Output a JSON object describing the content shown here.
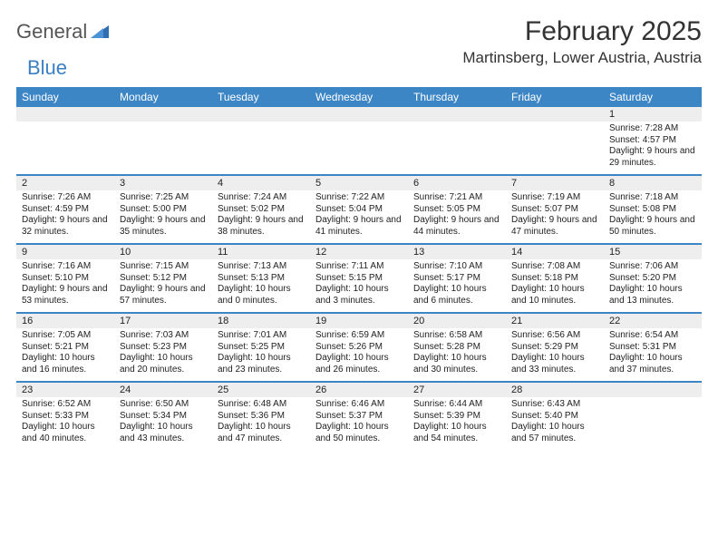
{
  "logo": {
    "word1": "General",
    "word2": "Blue"
  },
  "title": "February 2025",
  "location": "Martinsberg, Lower Austria, Austria",
  "colors": {
    "header_bar": "#3d86c6",
    "week_rule": "#3d86c6",
    "band_bg": "#eeeeee",
    "text": "#222222",
    "logo_gray": "#555555",
    "logo_blue": "#3b7fc4",
    "page_bg": "#ffffff"
  },
  "typography": {
    "title_fontsize": 30,
    "location_fontsize": 17,
    "dayhead_fontsize": 12,
    "cell_fontsize": 10,
    "daynum_fontsize": 11,
    "logo_fontsize": 22,
    "font_family": "Arial"
  },
  "day_headers": [
    "Sunday",
    "Monday",
    "Tuesday",
    "Wednesday",
    "Thursday",
    "Friday",
    "Saturday"
  ],
  "weeks": [
    [
      null,
      null,
      null,
      null,
      null,
      null,
      {
        "n": "1",
        "sr": "7:28 AM",
        "ss": "4:57 PM",
        "dl": "9 hours and 29 minutes."
      }
    ],
    [
      {
        "n": "2",
        "sr": "7:26 AM",
        "ss": "4:59 PM",
        "dl": "9 hours and 32 minutes."
      },
      {
        "n": "3",
        "sr": "7:25 AM",
        "ss": "5:00 PM",
        "dl": "9 hours and 35 minutes."
      },
      {
        "n": "4",
        "sr": "7:24 AM",
        "ss": "5:02 PM",
        "dl": "9 hours and 38 minutes."
      },
      {
        "n": "5",
        "sr": "7:22 AM",
        "ss": "5:04 PM",
        "dl": "9 hours and 41 minutes."
      },
      {
        "n": "6",
        "sr": "7:21 AM",
        "ss": "5:05 PM",
        "dl": "9 hours and 44 minutes."
      },
      {
        "n": "7",
        "sr": "7:19 AM",
        "ss": "5:07 PM",
        "dl": "9 hours and 47 minutes."
      },
      {
        "n": "8",
        "sr": "7:18 AM",
        "ss": "5:08 PM",
        "dl": "9 hours and 50 minutes."
      }
    ],
    [
      {
        "n": "9",
        "sr": "7:16 AM",
        "ss": "5:10 PM",
        "dl": "9 hours and 53 minutes."
      },
      {
        "n": "10",
        "sr": "7:15 AM",
        "ss": "5:12 PM",
        "dl": "9 hours and 57 minutes."
      },
      {
        "n": "11",
        "sr": "7:13 AM",
        "ss": "5:13 PM",
        "dl": "10 hours and 0 minutes."
      },
      {
        "n": "12",
        "sr": "7:11 AM",
        "ss": "5:15 PM",
        "dl": "10 hours and 3 minutes."
      },
      {
        "n": "13",
        "sr": "7:10 AM",
        "ss": "5:17 PM",
        "dl": "10 hours and 6 minutes."
      },
      {
        "n": "14",
        "sr": "7:08 AM",
        "ss": "5:18 PM",
        "dl": "10 hours and 10 minutes."
      },
      {
        "n": "15",
        "sr": "7:06 AM",
        "ss": "5:20 PM",
        "dl": "10 hours and 13 minutes."
      }
    ],
    [
      {
        "n": "16",
        "sr": "7:05 AM",
        "ss": "5:21 PM",
        "dl": "10 hours and 16 minutes."
      },
      {
        "n": "17",
        "sr": "7:03 AM",
        "ss": "5:23 PM",
        "dl": "10 hours and 20 minutes."
      },
      {
        "n": "18",
        "sr": "7:01 AM",
        "ss": "5:25 PM",
        "dl": "10 hours and 23 minutes."
      },
      {
        "n": "19",
        "sr": "6:59 AM",
        "ss": "5:26 PM",
        "dl": "10 hours and 26 minutes."
      },
      {
        "n": "20",
        "sr": "6:58 AM",
        "ss": "5:28 PM",
        "dl": "10 hours and 30 minutes."
      },
      {
        "n": "21",
        "sr": "6:56 AM",
        "ss": "5:29 PM",
        "dl": "10 hours and 33 minutes."
      },
      {
        "n": "22",
        "sr": "6:54 AM",
        "ss": "5:31 PM",
        "dl": "10 hours and 37 minutes."
      }
    ],
    [
      {
        "n": "23",
        "sr": "6:52 AM",
        "ss": "5:33 PM",
        "dl": "10 hours and 40 minutes."
      },
      {
        "n": "24",
        "sr": "6:50 AM",
        "ss": "5:34 PM",
        "dl": "10 hours and 43 minutes."
      },
      {
        "n": "25",
        "sr": "6:48 AM",
        "ss": "5:36 PM",
        "dl": "10 hours and 47 minutes."
      },
      {
        "n": "26",
        "sr": "6:46 AM",
        "ss": "5:37 PM",
        "dl": "10 hours and 50 minutes."
      },
      {
        "n": "27",
        "sr": "6:44 AM",
        "ss": "5:39 PM",
        "dl": "10 hours and 54 minutes."
      },
      {
        "n": "28",
        "sr": "6:43 AM",
        "ss": "5:40 PM",
        "dl": "10 hours and 57 minutes."
      },
      null
    ]
  ],
  "labels": {
    "sunrise": "Sunrise:",
    "sunset": "Sunset:",
    "daylight": "Daylight:"
  }
}
